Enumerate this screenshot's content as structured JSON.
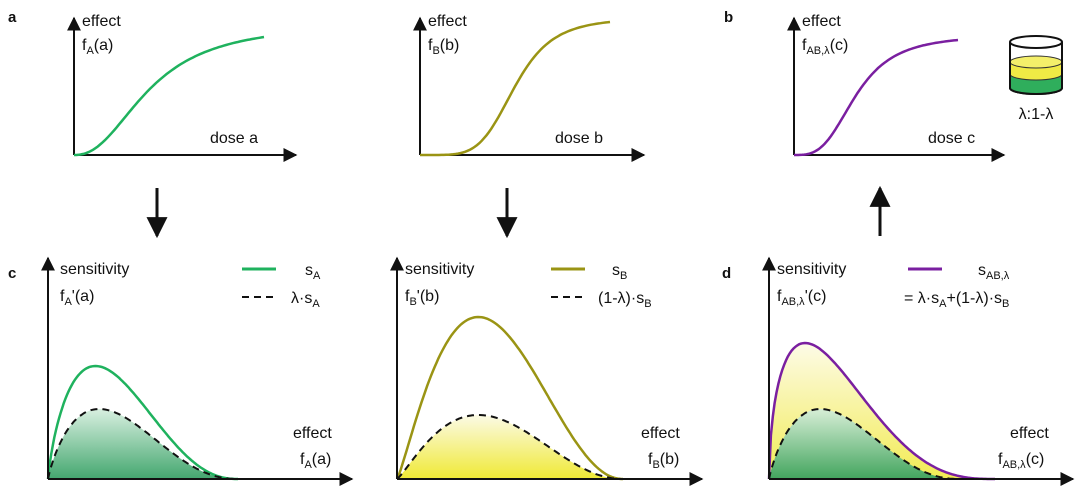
{
  "colors": {
    "drug_a": "#1fb25e",
    "drug_b": "#9a9414",
    "combo": "#7a1fa0",
    "axis": "#111111",
    "fill_green": "#3aa86a",
    "fill_yellow": "#f2ec3a"
  },
  "panel_letters": {
    "a": "a",
    "b": "b",
    "c": "c",
    "d": "d"
  },
  "panel_a1": {
    "y_top": "effect",
    "y_fn_main": "f",
    "y_fn_sub": "A",
    "y_fn_arg": "(a)",
    "x_label": "dose a"
  },
  "panel_a2": {
    "y_top": "effect",
    "y_fn_main": "f",
    "y_fn_sub": "B",
    "y_fn_arg": "(b)",
    "x_label": "dose b"
  },
  "panel_b": {
    "y_top": "effect",
    "y_fn_main": "f",
    "y_fn_sub": "AB,λ",
    "y_fn_arg": "(c)",
    "x_label": "dose c",
    "mix_label": "λ:1-λ"
  },
  "panel_c1": {
    "y_top": "sensitivity",
    "y_fn_main": "f",
    "y_fn_sub": "A",
    "y_fn_arg": "'(a)",
    "x_top": "effect",
    "x_fn_main": "f",
    "x_fn_sub": "A",
    "x_fn_arg": "(a)",
    "legend_solid_main": "s",
    "legend_solid_sub": "A",
    "legend_dashed_main": "λ·s",
    "legend_dashed_sub": "A"
  },
  "panel_c2": {
    "y_top": "sensitivity",
    "y_fn_main": "f",
    "y_fn_sub": "B",
    "y_fn_arg": "'(b)",
    "x_top": "effect",
    "x_fn_main": "f",
    "x_fn_sub": "B",
    "x_fn_arg": "(b)",
    "legend_solid_main": "s",
    "legend_solid_sub": "B",
    "legend_dashed_main": "(1-λ)·s",
    "legend_dashed_sub": "B"
  },
  "panel_d": {
    "y_top": "sensitivity",
    "y_fn_main": "f",
    "y_fn_sub": "AB,λ",
    "y_fn_arg": "'(c)",
    "x_top": "effect",
    "x_fn_main": "f",
    "x_fn_sub": "AB,λ",
    "x_fn_arg": "(c)",
    "legend_solid_main": "s",
    "legend_solid_sub": "AB,λ",
    "eq_p1": "= λ·s",
    "eq_s1": "A",
    "eq_p2": "+(1-λ)·s",
    "eq_s2": "B"
  }
}
